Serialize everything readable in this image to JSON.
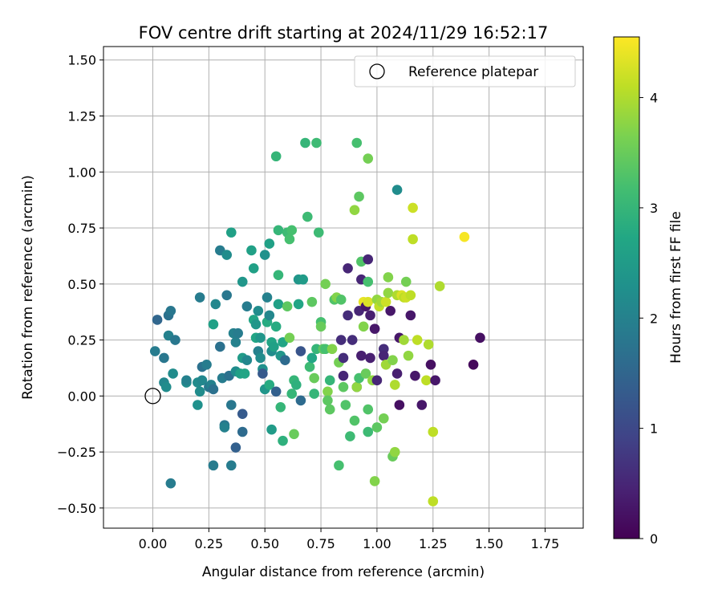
{
  "chart_data": {
    "type": "scatter",
    "title": "FOV centre drift starting at 2024/11/29 16:52:17",
    "xlabel": "Angular distance from reference (arcmin)",
    "ylabel": "Rotation from reference (arcmin)",
    "xlim": [
      -0.22,
      1.92
    ],
    "ylim": [
      -0.59,
      1.56
    ],
    "x_ticks": [
      "0.00",
      "0.25",
      "0.50",
      "0.75",
      "1.00",
      "1.25",
      "1.50",
      "1.75"
    ],
    "y_ticks": [
      "−0.50",
      "−0.25",
      "0.00",
      "0.25",
      "0.50",
      "0.75",
      "1.00",
      "1.25",
      "1.50"
    ],
    "x_tick_values": [
      0,
      0.25,
      0.5,
      0.75,
      1.0,
      1.25,
      1.5,
      1.75
    ],
    "y_tick_values": [
      -0.5,
      -0.25,
      0,
      0.25,
      0.5,
      0.75,
      1.0,
      1.25,
      1.5
    ],
    "grid": true,
    "legend": {
      "position": "top-right",
      "entries": [
        {
          "label": "Reference platepar",
          "marker": "open-circle"
        }
      ]
    },
    "reference_point": {
      "x": 0.0,
      "y": 0.0
    },
    "colorbar": {
      "label": "Hours from first FF file",
      "colormap": "viridis",
      "range": [
        0,
        4.55
      ],
      "ticks": [
        "0",
        "1",
        "2",
        "3",
        "4"
      ],
      "tick_values": [
        0,
        1,
        2,
        3,
        4
      ]
    },
    "points": [
      [
        0.01,
        0.2,
        1.9
      ],
      [
        0.02,
        0.34,
        1.5
      ],
      [
        0.05,
        0.17,
        1.8
      ],
      [
        0.05,
        0.06,
        2.1
      ],
      [
        0.06,
        0.04,
        2.2
      ],
      [
        0.07,
        0.36,
        1.7
      ],
      [
        0.07,
        0.27,
        2.0
      ],
      [
        0.08,
        0.38,
        1.8
      ],
      [
        0.08,
        -0.39,
        1.9
      ],
      [
        0.09,
        0.1,
        2.2
      ],
      [
        0.1,
        0.25,
        1.8
      ],
      [
        0.15,
        0.06,
        2.2
      ],
      [
        0.15,
        0.07,
        2.0
      ],
      [
        0.2,
        0.06,
        2.2
      ],
      [
        0.2,
        -0.04,
        2.3
      ],
      [
        0.21,
        0.02,
        2.2
      ],
      [
        0.21,
        0.44,
        1.9
      ],
      [
        0.22,
        0.07,
        2.1
      ],
      [
        0.22,
        0.13,
        1.7
      ],
      [
        0.24,
        0.14,
        1.9
      ],
      [
        0.25,
        0.04,
        1.8
      ],
      [
        0.26,
        0.05,
        2.0
      ],
      [
        0.27,
        0.03,
        1.7
      ],
      [
        0.27,
        -0.31,
        1.9
      ],
      [
        0.27,
        0.32,
        2.6
      ],
      [
        0.28,
        0.41,
        2.1
      ],
      [
        0.3,
        0.22,
        1.7
      ],
      [
        0.3,
        0.65,
        1.9
      ],
      [
        0.31,
        0.08,
        1.9
      ],
      [
        0.32,
        -0.13,
        1.8
      ],
      [
        0.32,
        -0.14,
        2.0
      ],
      [
        0.33,
        0.63,
        2.2
      ],
      [
        0.33,
        0.45,
        1.8
      ],
      [
        0.34,
        0.09,
        1.7
      ],
      [
        0.35,
        -0.04,
        1.8
      ],
      [
        0.35,
        0.73,
        2.6
      ],
      [
        0.35,
        -0.31,
        1.9
      ],
      [
        0.36,
        0.28,
        2.0
      ],
      [
        0.37,
        0.24,
        2.0
      ],
      [
        0.37,
        0.11,
        2.2
      ],
      [
        0.37,
        -0.23,
        1.4
      ],
      [
        0.38,
        0.28,
        1.9
      ],
      [
        0.39,
        0.1,
        2.6
      ],
      [
        0.4,
        0.51,
        2.4
      ],
      [
        0.4,
        0.17,
        2.5
      ],
      [
        0.4,
        -0.16,
        1.6
      ],
      [
        0.4,
        -0.08,
        1.3
      ],
      [
        0.41,
        0.1,
        2.7
      ],
      [
        0.42,
        0.4,
        1.9
      ],
      [
        0.42,
        0.16,
        2.1
      ],
      [
        0.44,
        0.65,
        2.6
      ],
      [
        0.45,
        0.57,
        2.6
      ],
      [
        0.45,
        0.34,
        2.7
      ],
      [
        0.46,
        0.32,
        2.4
      ],
      [
        0.46,
        0.26,
        2.7
      ],
      [
        0.47,
        0.38,
        2.2
      ],
      [
        0.47,
        0.2,
        2.0
      ],
      [
        0.48,
        0.26,
        2.4
      ],
      [
        0.48,
        0.17,
        2.2
      ],
      [
        0.49,
        0.12,
        2.3
      ],
      [
        0.49,
        0.1,
        1.3
      ],
      [
        0.5,
        0.63,
        2.3
      ],
      [
        0.5,
        0.03,
        2.4
      ],
      [
        0.51,
        0.44,
        2.0
      ],
      [
        0.51,
        0.33,
        2.8
      ],
      [
        0.52,
        0.05,
        2.8
      ],
      [
        0.52,
        0.68,
        2.6
      ],
      [
        0.52,
        0.36,
        2.1
      ],
      [
        0.53,
        0.2,
        2.2
      ],
      [
        0.53,
        -0.15,
        2.5
      ],
      [
        0.53,
        0.24,
        2.7
      ],
      [
        0.54,
        0.22,
        2.6
      ],
      [
        0.55,
        0.31,
        2.8
      ],
      [
        0.55,
        1.07,
        3.0
      ],
      [
        0.55,
        0.02,
        1.4
      ],
      [
        0.56,
        0.74,
        3.0
      ],
      [
        0.56,
        0.41,
        2.6
      ],
      [
        0.56,
        0.54,
        3.0
      ],
      [
        0.57,
        -0.05,
        3.0
      ],
      [
        0.57,
        0.18,
        2.4
      ],
      [
        0.58,
        0.24,
        2.7
      ],
      [
        0.58,
        -0.2,
        2.9
      ],
      [
        0.59,
        0.16,
        1.6
      ],
      [
        0.6,
        0.73,
        3.1
      ],
      [
        0.6,
        0.4,
        3.4
      ],
      [
        0.61,
        0.7,
        3.2
      ],
      [
        0.61,
        0.26,
        3.6
      ],
      [
        0.62,
        0.74,
        3.2
      ],
      [
        0.62,
        0.01,
        3.0
      ],
      [
        0.63,
        -0.17,
        3.5
      ],
      [
        0.63,
        0.07,
        3.0
      ],
      [
        0.64,
        0.05,
        2.9
      ],
      [
        0.65,
        0.52,
        2.4
      ],
      [
        0.65,
        0.41,
        2.7
      ],
      [
        0.66,
        0.2,
        1.2
      ],
      [
        0.66,
        -0.02,
        1.6
      ],
      [
        0.67,
        0.52,
        2.5
      ],
      [
        0.68,
        1.13,
        3.0
      ],
      [
        0.69,
        0.8,
        3.1
      ],
      [
        0.7,
        0.13,
        3.1
      ],
      [
        0.71,
        0.42,
        3.4
      ],
      [
        0.71,
        0.17,
        2.7
      ],
      [
        0.72,
        0.08,
        3.5
      ],
      [
        0.72,
        0.01,
        3.0
      ],
      [
        0.73,
        1.13,
        3.1
      ],
      [
        0.73,
        0.21,
        3.0
      ],
      [
        0.74,
        0.73,
        3.1
      ],
      [
        0.75,
        0.33,
        3.2
      ],
      [
        0.75,
        0.31,
        3.5
      ],
      [
        0.76,
        0.21,
        3.4
      ],
      [
        0.77,
        0.5,
        3.6
      ],
      [
        0.77,
        0.21,
        3.2
      ],
      [
        0.78,
        0.02,
        3.7
      ],
      [
        0.78,
        -0.02,
        3.4
      ],
      [
        0.79,
        -0.06,
        3.4
      ],
      [
        0.79,
        0.07,
        3.0
      ],
      [
        0.8,
        0.21,
        3.7
      ],
      [
        0.81,
        0.43,
        3.3
      ],
      [
        0.82,
        0.44,
        3.7
      ],
      [
        0.83,
        -0.31,
        3.2
      ],
      [
        0.83,
        0.15,
        3.6
      ],
      [
        0.84,
        0.25,
        0.6
      ],
      [
        0.84,
        0.43,
        3.3
      ],
      [
        0.85,
        0.17,
        0.6
      ],
      [
        0.85,
        0.09,
        0.5
      ],
      [
        0.85,
        0.04,
        3.4
      ],
      [
        0.86,
        -0.04,
        3.3
      ],
      [
        0.87,
        0.36,
        0.6
      ],
      [
        0.87,
        0.57,
        0.5
      ],
      [
        0.88,
        -0.18,
        3.1
      ],
      [
        0.89,
        0.25,
        0.6
      ],
      [
        0.9,
        0.83,
        3.8
      ],
      [
        0.9,
        -0.11,
        3.3
      ],
      [
        0.91,
        1.13,
        3.2
      ],
      [
        0.91,
        0.04,
        0.4
      ],
      [
        0.91,
        0.04,
        3.8
      ],
      [
        0.92,
        0.89,
        3.4
      ],
      [
        0.92,
        0.08,
        3.2
      ],
      [
        0.92,
        0.38,
        0.5
      ],
      [
        0.93,
        0.6,
        3.3
      ],
      [
        0.93,
        0.52,
        0.5
      ],
      [
        0.93,
        0.18,
        0.4
      ],
      [
        0.94,
        0.31,
        3.7
      ],
      [
        0.94,
        0.42,
        4.4
      ],
      [
        0.95,
        0.1,
        3.5
      ],
      [
        0.95,
        0.4,
        0.3
      ],
      [
        0.96,
        1.06,
        3.6
      ],
      [
        0.96,
        0.51,
        3.2
      ],
      [
        0.96,
        0.61,
        0.5
      ],
      [
        0.96,
        -0.06,
        3.3
      ],
      [
        0.96,
        -0.16,
        3.1
      ],
      [
        0.96,
        0.42,
        4.3
      ],
      [
        0.97,
        0.36,
        0.4
      ],
      [
        0.97,
        0.17,
        0.4
      ],
      [
        0.98,
        0.07,
        3.8
      ],
      [
        0.99,
        0.3,
        0.3
      ],
      [
        0.99,
        -0.38,
        3.7
      ],
      [
        1.0,
        0.43,
        3.8
      ],
      [
        1.0,
        -0.14,
        3.4
      ],
      [
        1.0,
        0.07,
        0.5
      ],
      [
        1.01,
        0.4,
        4.1
      ],
      [
        1.02,
        0.42,
        3.9
      ],
      [
        1.03,
        0.21,
        0.6
      ],
      [
        1.03,
        0.18,
        0.5
      ],
      [
        1.03,
        -0.1,
        3.6
      ],
      [
        1.04,
        0.42,
        4.2
      ],
      [
        1.04,
        0.14,
        3.9
      ],
      [
        1.05,
        0.53,
        3.7
      ],
      [
        1.05,
        0.46,
        3.8
      ],
      [
        1.06,
        0.38,
        0.3
      ],
      [
        1.07,
        0.16,
        3.7
      ],
      [
        1.07,
        -0.27,
        3.5
      ],
      [
        1.08,
        0.05,
        4.0
      ],
      [
        1.08,
        -0.25,
        3.8
      ],
      [
        1.09,
        0.45,
        4.0
      ],
      [
        1.09,
        0.1,
        0.4
      ],
      [
        1.09,
        0.92,
        2.2
      ],
      [
        1.1,
        0.26,
        0.3
      ],
      [
        1.1,
        -0.04,
        0.2
      ],
      [
        1.11,
        0.45,
        4.3
      ],
      [
        1.12,
        0.44,
        4.1
      ],
      [
        1.12,
        0.25,
        3.9
      ],
      [
        1.13,
        0.44,
        4.2
      ],
      [
        1.13,
        0.51,
        3.6
      ],
      [
        1.14,
        0.18,
        3.8
      ],
      [
        1.15,
        0.45,
        4.1
      ],
      [
        1.15,
        0.36,
        0.3
      ],
      [
        1.16,
        0.84,
        4.2
      ],
      [
        1.16,
        0.7,
        4.1
      ],
      [
        1.17,
        0.09,
        0.3
      ],
      [
        1.18,
        0.25,
        4.1
      ],
      [
        1.2,
        -0.04,
        0.3
      ],
      [
        1.22,
        0.07,
        4.1
      ],
      [
        1.23,
        0.23,
        4.0
      ],
      [
        1.24,
        0.14,
        0.2
      ],
      [
        1.25,
        -0.16,
        4.1
      ],
      [
        1.25,
        -0.47,
        4.1
      ],
      [
        1.26,
        0.07,
        0.3
      ],
      [
        1.28,
        0.49,
        4.0
      ],
      [
        1.39,
        0.71,
        4.5
      ],
      [
        1.43,
        0.14,
        0.1
      ],
      [
        1.46,
        0.26,
        0.2
      ]
    ]
  }
}
